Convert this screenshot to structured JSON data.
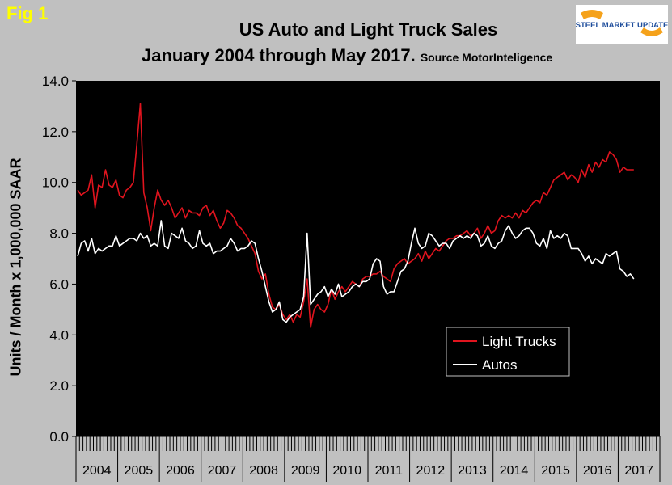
{
  "figure": {
    "label": "Fig 1",
    "title_line1": "US Auto and Light Truck Sales",
    "title_line2": "January 2004 through May 2017.",
    "source": "Source MotorInteligence",
    "logo_text": "STEEL MARKET UPDATE"
  },
  "colors": {
    "background": "#c0c0c0",
    "plot_bg": "#000000",
    "trucks": "#e0141e",
    "autos": "#ffffff",
    "fig_label": "#ffff00"
  },
  "chart_data": {
    "type": "line",
    "title": "US Auto and Light Truck Sales",
    "subtitle": "January 2004 through May 2017. Source MotorInteligence",
    "xlabel": "",
    "ylabel": "Units / Month x 1,000,000 SAAR",
    "ylim": [
      0,
      14
    ],
    "yticks": [
      "0.0",
      "2.0",
      "4.0",
      "6.0",
      "8.0",
      "10.0",
      "12.0",
      "14.0"
    ],
    "year_labels": [
      "2004",
      "2005",
      "2006",
      "2007",
      "2008",
      "2009",
      "2010",
      "2011",
      "2012",
      "2013",
      "2014",
      "2015",
      "2016",
      "2017"
    ],
    "x_start": "2004-01",
    "x_end": "2017-05",
    "legend_position": "lower-right",
    "series": [
      {
        "name": "Light Trucks",
        "color": "#e0141e",
        "values": [
          9.7,
          9.5,
          9.6,
          9.7,
          10.3,
          9.0,
          9.9,
          9.8,
          10.5,
          9.9,
          9.8,
          10.1,
          9.5,
          9.4,
          9.7,
          9.8,
          10.0,
          11.5,
          13.1,
          9.6,
          9.0,
          8.1,
          9.0,
          9.7,
          9.3,
          9.1,
          9.3,
          9.0,
          8.6,
          8.8,
          9.0,
          8.6,
          8.9,
          8.8,
          8.8,
          8.7,
          9.0,
          9.1,
          8.7,
          8.9,
          8.5,
          8.2,
          8.4,
          8.9,
          8.8,
          8.6,
          8.3,
          8.2,
          8.0,
          7.8,
          7.5,
          7.2,
          6.5,
          6.2,
          6.4,
          5.6,
          5.1,
          5.0,
          5.2,
          4.8,
          4.6,
          4.8,
          4.5,
          4.8,
          4.7,
          5.3,
          6.2,
          4.3,
          5.0,
          5.2,
          5.0,
          4.9,
          5.2,
          5.8,
          5.4,
          5.7,
          5.9,
          5.7,
          5.9,
          6.1,
          6.0,
          5.9,
          6.2,
          6.3,
          6.3,
          6.4,
          6.4,
          6.5,
          6.3,
          6.2,
          6.1,
          6.6,
          6.8,
          6.9,
          7.0,
          6.8,
          6.9,
          7.0,
          7.2,
          6.9,
          7.3,
          7.0,
          7.2,
          7.4,
          7.3,
          7.5,
          7.7,
          7.8,
          7.8,
          7.9,
          7.9,
          8.0,
          8.1,
          7.9,
          8.0,
          8.2,
          7.8,
          8.0,
          8.3,
          8.0,
          8.1,
          8.5,
          8.7,
          8.6,
          8.7,
          8.6,
          8.8,
          8.6,
          8.9,
          8.8,
          9.0,
          9.2,
          9.3,
          9.2,
          9.6,
          9.5,
          9.8,
          10.1,
          10.2,
          10.3,
          10.4,
          10.1,
          10.3,
          10.2,
          10.0,
          10.5,
          10.2,
          10.7,
          10.4,
          10.8,
          10.6,
          10.9,
          10.8,
          11.2,
          11.1,
          10.9,
          10.4,
          10.6,
          10.5,
          10.5,
          10.5
        ]
      },
      {
        "name": "Autos",
        "color": "#ffffff",
        "values": [
          7.1,
          7.6,
          7.7,
          7.3,
          7.8,
          7.2,
          7.4,
          7.3,
          7.4,
          7.5,
          7.5,
          7.9,
          7.5,
          7.6,
          7.7,
          7.8,
          7.8,
          7.7,
          8.0,
          7.8,
          7.9,
          7.5,
          7.6,
          7.5,
          8.5,
          7.5,
          7.4,
          8.0,
          7.9,
          7.8,
          8.2,
          7.7,
          7.6,
          7.4,
          7.5,
          8.1,
          7.6,
          7.5,
          7.6,
          7.2,
          7.3,
          7.3,
          7.4,
          7.5,
          7.8,
          7.6,
          7.3,
          7.4,
          7.4,
          7.5,
          7.7,
          7.6,
          7.0,
          6.5,
          5.9,
          5.3,
          4.9,
          5.0,
          5.3,
          4.6,
          4.5,
          4.7,
          4.8,
          4.9,
          5.0,
          5.5,
          8.0,
          5.2,
          5.4,
          5.6,
          5.7,
          5.9,
          5.5,
          5.8,
          5.6,
          6.0,
          5.5,
          5.6,
          5.7,
          5.9,
          6.0,
          5.9,
          6.1,
          6.1,
          6.2,
          6.8,
          7.0,
          6.9,
          5.9,
          5.6,
          5.7,
          5.7,
          6.1,
          6.5,
          6.6,
          6.9,
          7.6,
          8.2,
          7.6,
          7.4,
          7.5,
          8.0,
          7.9,
          7.7,
          7.5,
          7.6,
          7.6,
          7.4,
          7.7,
          7.8,
          7.9,
          7.8,
          7.9,
          7.8,
          8.0,
          7.9,
          7.5,
          7.6,
          7.9,
          7.5,
          7.4,
          7.6,
          7.7,
          8.1,
          8.3,
          8.0,
          7.8,
          7.9,
          8.1,
          8.2,
          8.2,
          8.0,
          7.6,
          7.5,
          7.8,
          7.4,
          8.1,
          7.8,
          7.9,
          7.8,
          8.0,
          7.9,
          7.4,
          7.4,
          7.4,
          7.2,
          6.9,
          7.1,
          6.8,
          7.0,
          6.9,
          6.8,
          7.2,
          7.1,
          7.2,
          7.3,
          6.6,
          6.5,
          6.3,
          6.4,
          6.2
        ]
      }
    ]
  }
}
